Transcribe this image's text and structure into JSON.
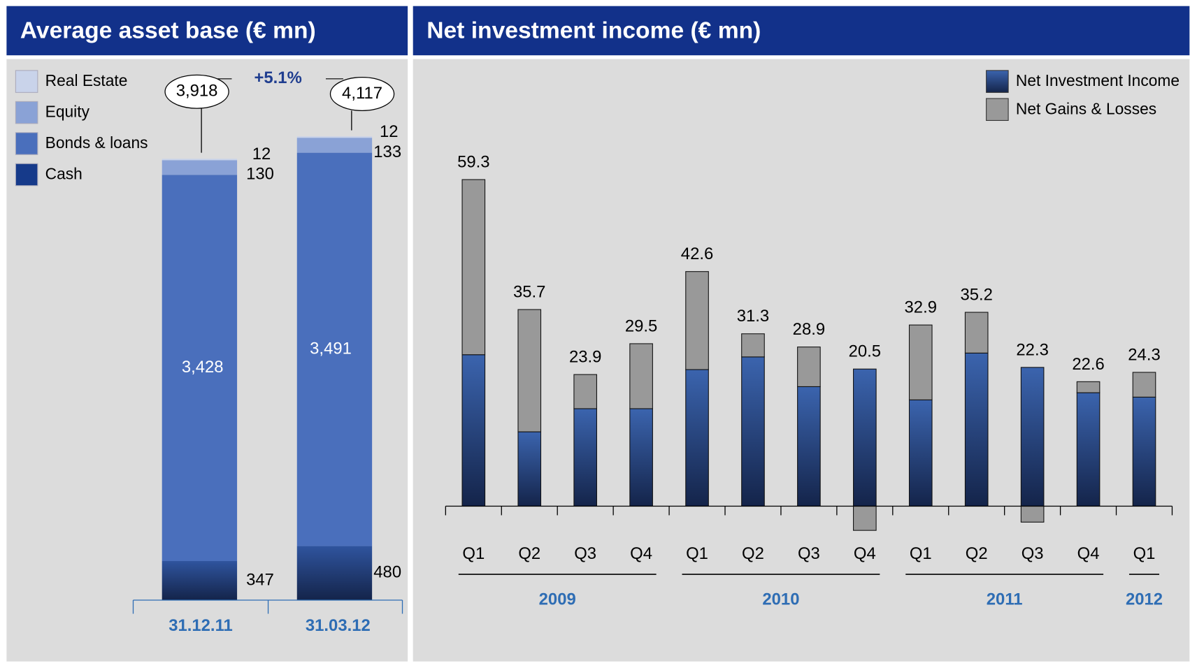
{
  "chart_data": [
    {
      "type": "stacked_bar",
      "title": "Average asset base (€ mn)",
      "categories": [
        "31.12.11",
        "31.03.12"
      ],
      "series": [
        {
          "name": "Cash",
          "color": "#163a8a",
          "values": [
            347,
            480
          ]
        },
        {
          "name": "Bonds & loans",
          "color": "#4a6fbc",
          "values": [
            3428,
            3491
          ],
          "value_labels": [
            "3,428",
            "3,491"
          ]
        },
        {
          "name": "Equity",
          "color": "#8aa2d6",
          "values": [
            130,
            133
          ]
        },
        {
          "name": "Real Estate",
          "color": "#c9d3ea",
          "values": [
            12,
            12
          ]
        }
      ],
      "totals": [
        3918,
        4117
      ],
      "total_labels": [
        "3,918",
        "4,117"
      ],
      "change_label": "+5.1%"
    },
    {
      "type": "stacked_bar_signed",
      "title": "Net investment income (€ mn)",
      "categories": [
        "Q1",
        "Q2",
        "Q3",
        "Q4",
        "Q1",
        "Q2",
        "Q3",
        "Q4",
        "Q1",
        "Q2",
        "Q3",
        "Q4",
        "Q1"
      ],
      "groups": [
        {
          "name": "2009",
          "count": 4
        },
        {
          "name": "2010",
          "count": 4
        },
        {
          "name": "2011",
          "count": 4
        },
        {
          "name": "2012",
          "count": 1
        }
      ],
      "series": [
        {
          "name": "Net Investment Income",
          "color": "#2f549e",
          "values": [
            27.5,
            13.5,
            17.7,
            17.7,
            24.8,
            27.1,
            21.7,
            24.9,
            19.3,
            27.8,
            25.2,
            20.6,
            19.8
          ]
        },
        {
          "name": "Net Gains & Losses",
          "color": "#999999",
          "values": [
            31.8,
            22.2,
            6.2,
            11.8,
            17.8,
            4.2,
            7.2,
            -4.4,
            13.6,
            7.4,
            -2.9,
            2.0,
            4.5
          ]
        }
      ],
      "totals": [
        59.3,
        35.7,
        23.9,
        29.5,
        42.6,
        31.3,
        28.9,
        20.5,
        32.9,
        35.2,
        22.3,
        22.6,
        24.3
      ]
    }
  ]
}
